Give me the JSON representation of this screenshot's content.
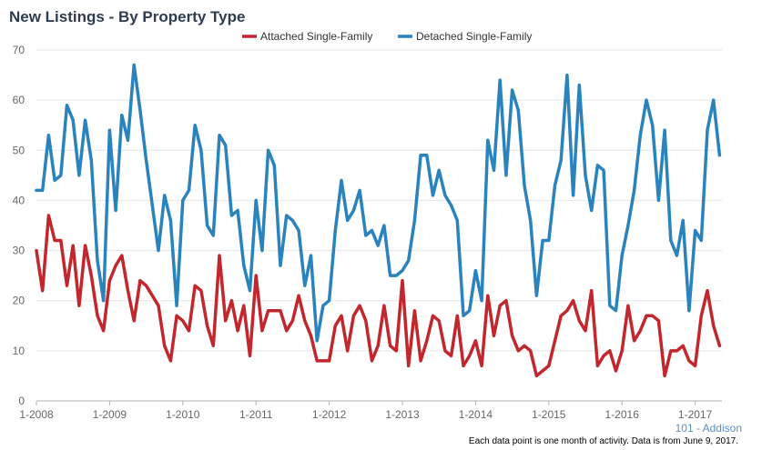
{
  "chart_data": {
    "type": "line",
    "title": "New Listings - By Property Type",
    "xlabel": "",
    "ylabel": "",
    "ylim": [
      0,
      70
    ],
    "yticks": [
      0,
      10,
      20,
      30,
      40,
      50,
      60,
      70
    ],
    "x_start": "2008-01",
    "x_tick_labels": [
      "1-2008",
      "1-2009",
      "1-2010",
      "1-2011",
      "1-2012",
      "1-2013",
      "1-2014",
      "1-2015",
      "1-2016",
      "1-2017"
    ],
    "grid": true,
    "legend_position": "top",
    "series": [
      {
        "name": "Attached Single-Family",
        "color": "#c1272d",
        "values": [
          30,
          22,
          37,
          32,
          32,
          23,
          31,
          19,
          31,
          25,
          17,
          14,
          24,
          27,
          29,
          22,
          16,
          24,
          23,
          21,
          19,
          11,
          8,
          17,
          16,
          14,
          23,
          22,
          15,
          11,
          29,
          16,
          20,
          14,
          19,
          9,
          25,
          14,
          18,
          18,
          18,
          14,
          16,
          21,
          16,
          13,
          8,
          8,
          8,
          15,
          17,
          10,
          17,
          19,
          16,
          8,
          11,
          19,
          11,
          10,
          24,
          7,
          18,
          8,
          12,
          17,
          16,
          10,
          9,
          17,
          7,
          9,
          12,
          7,
          21,
          13,
          19,
          20,
          13,
          10,
          11,
          10,
          5,
          6,
          7,
          12,
          17,
          18,
          20,
          16,
          14,
          22,
          7,
          9,
          10,
          6,
          10,
          19,
          12,
          14,
          17,
          17,
          16,
          5,
          10,
          10,
          11,
          8,
          7,
          17,
          22,
          15,
          11
        ]
      },
      {
        "name": "Detached Single-Family",
        "color": "#2a83bd",
        "values": [
          42,
          42,
          53,
          44,
          45,
          59,
          56,
          45,
          56,
          48,
          28,
          20,
          54,
          38,
          57,
          52,
          67,
          58,
          48,
          39,
          30,
          41,
          36,
          19,
          40,
          42,
          55,
          50,
          35,
          33,
          53,
          51,
          37,
          38,
          27,
          22,
          40,
          30,
          50,
          47,
          27,
          37,
          36,
          34,
          23,
          29,
          12,
          19,
          20,
          34,
          44,
          36,
          38,
          42,
          33,
          34,
          31,
          35,
          25,
          25,
          26,
          28,
          36,
          49,
          49,
          41,
          46,
          41,
          39,
          36,
          17,
          18,
          26,
          20,
          52,
          46,
          64,
          45,
          62,
          58,
          43,
          36,
          21,
          32,
          32,
          43,
          48,
          65,
          41,
          63,
          45,
          38,
          47,
          46,
          19,
          18,
          29,
          35,
          42,
          53,
          60,
          55,
          40,
          54,
          32,
          29,
          36,
          18,
          34,
          32,
          54,
          60,
          49
        ]
      }
    ]
  },
  "location_label": "101 - Addison",
  "footnote": "Each data point is one month of activity. Data is from June 9, 2017."
}
